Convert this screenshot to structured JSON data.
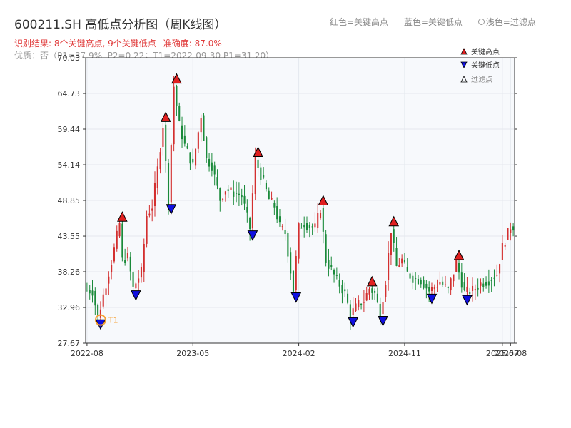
{
  "header": {
    "title": "600211.SH 高低点分析图（周K线图）",
    "legend_red": "红色=关键高点",
    "legend_blue": "蓝色=关键低点",
    "legend_filtered": "浅色=过滤点",
    "result_line": "识别结果: 8个关键高点, 9个关键低点",
    "accuracy": "准确度: 87.0%",
    "quality_line": "优质：否（P1=37.9%, P2=0.22；T1=2022-09-30 P1=31.20）"
  },
  "colors": {
    "up_candle": "#d32f2f",
    "down_candle": "#1a8a3a",
    "high_marker": "#e02020",
    "low_marker": "#1010e0",
    "t1_ring": "#f5a033",
    "grid": "#e4e8ee",
    "plot_bg": "#f7f9fc"
  },
  "chart_data": {
    "type": "candlestick",
    "title": "600211.SH 高低点分析图（周K线图）",
    "y_ticks": [
      "27.67",
      "32.96",
      "38.26",
      "43.55",
      "48.85",
      "54.14",
      "59.44",
      "64.73",
      "70.03"
    ],
    "ylim": [
      27.67,
      70.03
    ],
    "x_ticks": [
      "2022-08",
      "2023-05",
      "2024-02",
      "2024-11",
      "2025-08",
      "2025-07"
    ],
    "legend": {
      "high": "关键高点",
      "low": "关键低点",
      "filtered": "过滤点",
      "placement": "top-right"
    },
    "anchors": [
      {
        "label": "2022-08",
        "index": 0
      },
      {
        "label": "2023-05",
        "index": 39
      },
      {
        "label": "2024-02",
        "index": 78
      },
      {
        "label": "2024-11",
        "index": 117
      },
      {
        "label": "2025-08",
        "index": 156
      },
      {
        "label": "2025-07",
        "index": 153
      }
    ],
    "n_weeks": 158,
    "t1": {
      "label": "T1",
      "index": 5,
      "price": 31.2
    },
    "key_highs": [
      {
        "index": 13,
        "price": 45.6
      },
      {
        "index": 29,
        "price": 60.4
      },
      {
        "index": 33,
        "price": 66.1
      },
      {
        "index": 63,
        "price": 55.2
      },
      {
        "index": 87,
        "price": 48.0
      },
      {
        "index": 105,
        "price": 36.0
      },
      {
        "index": 113,
        "price": 44.9
      },
      {
        "index": 137,
        "price": 39.9
      }
    ],
    "key_lows": [
      {
        "index": 5,
        "price": 31.3
      },
      {
        "index": 18,
        "price": 35.6
      },
      {
        "index": 31,
        "price": 48.4
      },
      {
        "index": 61,
        "price": 44.5
      },
      {
        "index": 77,
        "price": 35.3
      },
      {
        "index": 98,
        "price": 31.6
      },
      {
        "index": 109,
        "price": 31.8
      },
      {
        "index": 127,
        "price": 35.1
      },
      {
        "index": 140,
        "price": 34.9
      }
    ],
    "path": [
      [
        0,
        35.6
      ],
      [
        3,
        35.4
      ],
      [
        5,
        31.4
      ],
      [
        8,
        36.5
      ],
      [
        10,
        39.8
      ],
      [
        13,
        45.4
      ],
      [
        14,
        40.0
      ],
      [
        16,
        40.5
      ],
      [
        18,
        35.8
      ],
      [
        21,
        38.2
      ],
      [
        23,
        46.6
      ],
      [
        25,
        48.0
      ],
      [
        27,
        53.5
      ],
      [
        29,
        60.1
      ],
      [
        31,
        48.6
      ],
      [
        33,
        65.8
      ],
      [
        35,
        60.0
      ],
      [
        37,
        57.0
      ],
      [
        40,
        54.0
      ],
      [
        43,
        61.5
      ],
      [
        45,
        55.0
      ],
      [
        47,
        54.0
      ],
      [
        50,
        49.0
      ],
      [
        52,
        50.5
      ],
      [
        55,
        50.0
      ],
      [
        58,
        49.5
      ],
      [
        61,
        44.7
      ],
      [
        63,
        54.9
      ],
      [
        66,
        51.5
      ],
      [
        68,
        49.0
      ],
      [
        70,
        48.0
      ],
      [
        72,
        45.0
      ],
      [
        74,
        44.0
      ],
      [
        77,
        35.6
      ],
      [
        79,
        44.8
      ],
      [
        81,
        45.5
      ],
      [
        83,
        45.0
      ],
      [
        85,
        44.8
      ],
      [
        87,
        47.7
      ],
      [
        89,
        40.0
      ],
      [
        91,
        38.5
      ],
      [
        93,
        37.0
      ],
      [
        96,
        35.0
      ],
      [
        98,
        31.9
      ],
      [
        101,
        33.5
      ],
      [
        103,
        34.0
      ],
      [
        105,
        35.8
      ],
      [
        107,
        35.0
      ],
      [
        109,
        32.0
      ],
      [
        111,
        37.0
      ],
      [
        113,
        44.6
      ],
      [
        115,
        39.0
      ],
      [
        117,
        40.0
      ],
      [
        119,
        38.0
      ],
      [
        121,
        37.3
      ],
      [
        124,
        37.0
      ],
      [
        127,
        35.4
      ],
      [
        129,
        36.0
      ],
      [
        131,
        36.8
      ],
      [
        134,
        35.5
      ],
      [
        137,
        39.6
      ],
      [
        140,
        35.2
      ],
      [
        143,
        35.5
      ],
      [
        146,
        36.5
      ],
      [
        149,
        37.0
      ],
      [
        152,
        38.0
      ],
      [
        154,
        42.0
      ],
      [
        157,
        45.0
      ]
    ]
  }
}
